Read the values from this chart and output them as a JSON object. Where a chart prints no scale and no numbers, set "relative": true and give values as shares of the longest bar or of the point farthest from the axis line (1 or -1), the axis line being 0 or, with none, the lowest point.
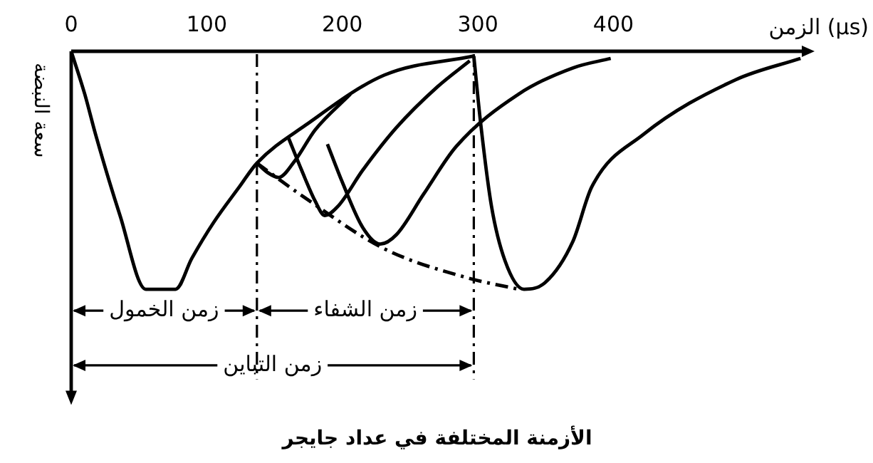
{
  "chart_data": {
    "type": "line",
    "relative": true,
    "title": "الأزمنة المختلفة في عداد جايجر",
    "xlabel": "الزمن (µs)",
    "ylabel": "سعة النبضة",
    "xlim": [
      0,
      540
    ],
    "xticks": [
      0,
      100,
      200,
      300,
      400
    ],
    "grid": false,
    "legend": false,
    "marker": "none",
    "line_style": "solid",
    "series": [
      {
        "color": "#000000",
        "x": [
          0,
          10,
          18,
          36,
          55,
          77,
          89,
          105,
          124,
          137,
          173,
          231,
          297
        ],
        "values": [
          0,
          -0.18,
          -0.35,
          -0.69,
          -1,
          -1,
          -0.87,
          -0.72,
          -0.57,
          -0.47,
          -0.31,
          -0.1,
          -0.02
        ]
      },
      {
        "color": "#000000",
        "x": [
          137,
          145,
          153,
          165,
          180,
          206
        ],
        "values": [
          -0.47,
          -0.51,
          -0.53,
          -0.46,
          -0.33,
          -0.18
        ]
      },
      {
        "color": "#000000",
        "x": [
          160,
          170,
          180,
          187,
          197,
          215,
          240,
          270,
          294
        ],
        "values": [
          -0.36,
          -0.5,
          -0.63,
          -0.69,
          -0.65,
          -0.5,
          -0.32,
          -0.15,
          -0.04
        ]
      },
      {
        "color": "#000000",
        "x": [
          189,
          200,
          215,
          228,
          240,
          260,
          284,
          330,
          370,
          398
        ],
        "values": [
          -0.39,
          -0.55,
          -0.74,
          -0.81,
          -0.77,
          -0.6,
          -0.4,
          -0.18,
          -0.07,
          -0.03
        ]
      },
      {
        "color": "#000000",
        "x": [
          297,
          302,
          310,
          320,
          334,
          350,
          370,
          384,
          422,
          490,
          538
        ],
        "values": [
          -0.02,
          -0.3,
          -0.65,
          -0.88,
          -1,
          -0.97,
          -0.8,
          -0.57,
          -0.35,
          -0.12,
          -0.03
        ]
      },
      {
        "color": "#000000",
        "line_style": "dashed",
        "x": [
          137,
          171,
          231,
          291,
          330
        ],
        "values": [
          -0.47,
          -0.61,
          -0.83,
          -0.95,
          -1
        ]
      }
    ],
    "ref_lines": [
      {
        "axis": "x",
        "value": 137,
        "color": "#000000",
        "line_style": "dashed"
      },
      {
        "axis": "x",
        "value": 297,
        "color": "#000000",
        "line_style": "dashed"
      }
    ],
    "annotations": [
      "زمن الخمول",
      "زمن الشفاء",
      "زمن التباين"
    ]
  }
}
